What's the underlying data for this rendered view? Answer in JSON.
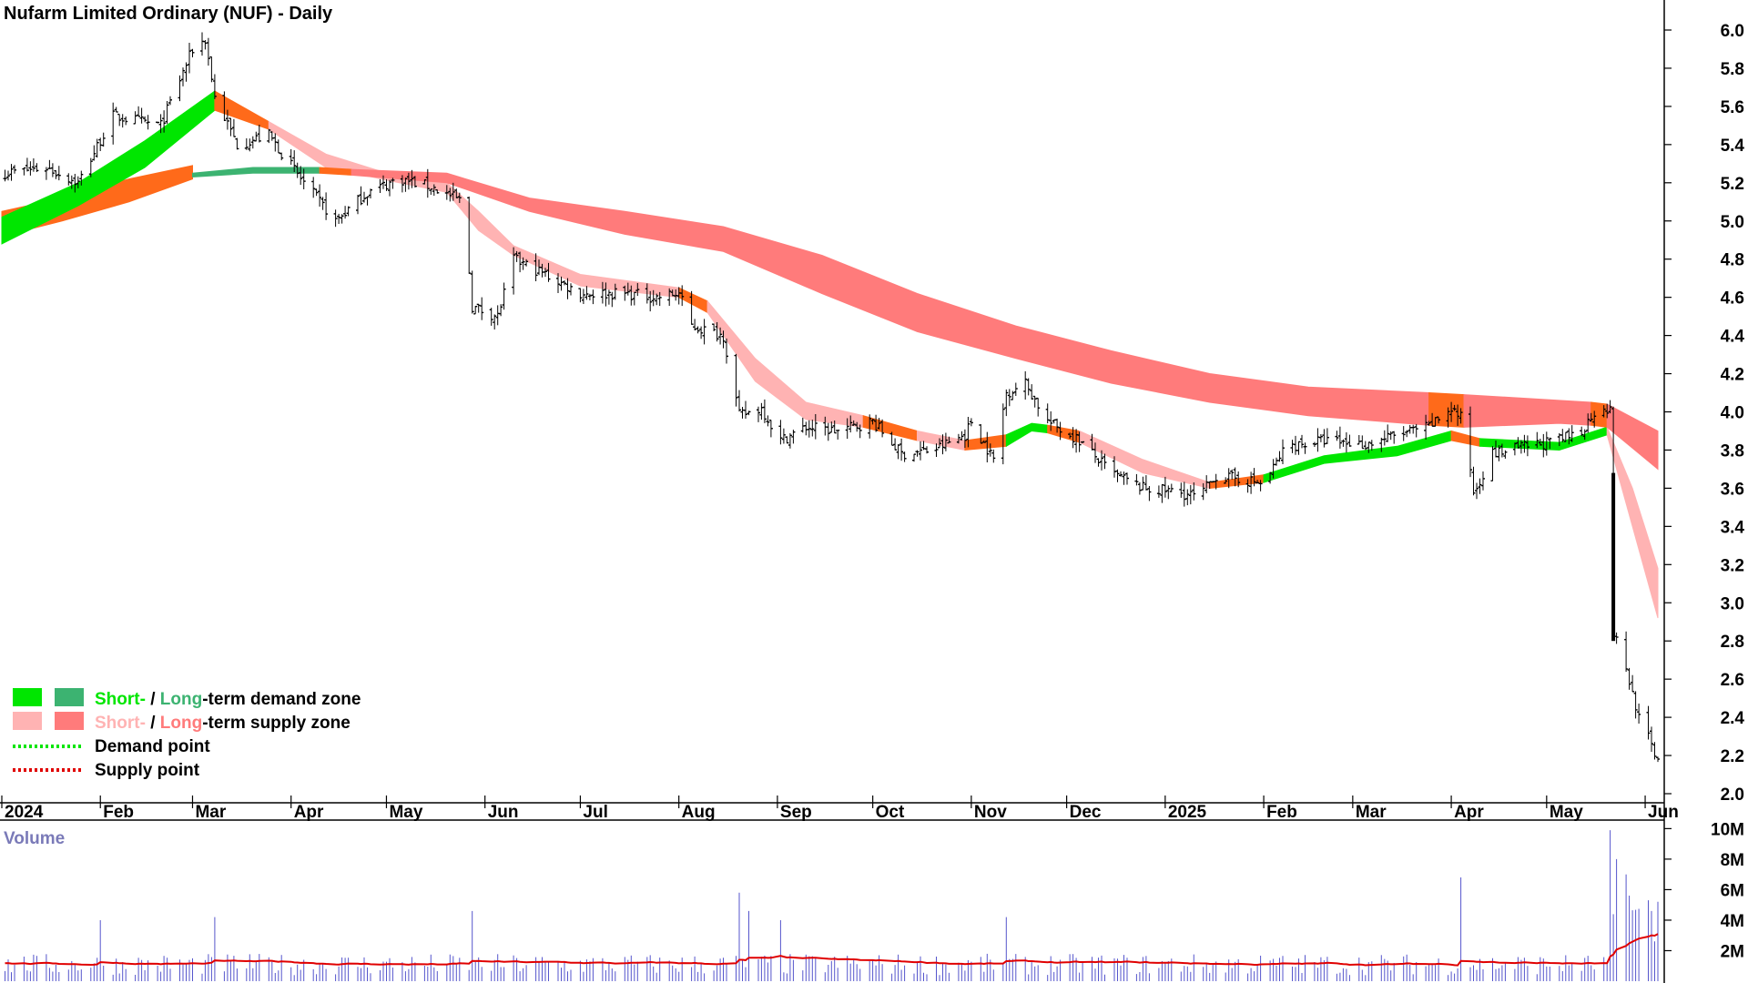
{
  "chart_data": {
    "type": "candlestick",
    "title": "Nufarm Limited Ordinary (NUF) - Daily",
    "price_axis": {
      "ylim": [
        2.0,
        6.1
      ],
      "ticks": [
        "6.0",
        "5.8",
        "5.6",
        "5.4",
        "5.2",
        "5.0",
        "4.8",
        "4.6",
        "4.4",
        "4.2",
        "4.0",
        "3.8",
        "3.6",
        "3.4",
        "3.2",
        "3.0",
        "2.8",
        "2.6",
        "2.4",
        "2.2",
        "2.0"
      ]
    },
    "x_axis": {
      "range": [
        "2024-01-01",
        "2025-06-07"
      ],
      "ticks": [
        {
          "date": "2024-01-01",
          "label": "2024"
        },
        {
          "date": "2024-02-01",
          "label": "Feb"
        },
        {
          "date": "2024-03-01",
          "label": "Mar"
        },
        {
          "date": "2024-04-01",
          "label": "Apr"
        },
        {
          "date": "2024-05-01",
          "label": "May"
        },
        {
          "date": "2024-06-01",
          "label": "Jun"
        },
        {
          "date": "2024-07-01",
          "label": "Jul"
        },
        {
          "date": "2024-08-01",
          "label": "Aug"
        },
        {
          "date": "2024-09-01",
          "label": "Sep"
        },
        {
          "date": "2024-10-01",
          "label": "Oct"
        },
        {
          "date": "2024-11-01",
          "label": "Nov"
        },
        {
          "date": "2024-12-01",
          "label": "Dec"
        },
        {
          "date": "2025-01-01",
          "label": "2025"
        },
        {
          "date": "2025-02-01",
          "label": "Feb"
        },
        {
          "date": "2025-03-01",
          "label": "Mar"
        },
        {
          "date": "2025-04-01",
          "label": "Apr"
        },
        {
          "date": "2025-05-01",
          "label": "May"
        },
        {
          "date": "2025-06-01",
          "label": "Jun"
        }
      ]
    },
    "price_path": [
      [
        "2024-01-01",
        5.25
      ],
      [
        "2024-01-15",
        5.28
      ],
      [
        "2024-01-25",
        5.2
      ],
      [
        "2024-02-05",
        5.55
      ],
      [
        "2024-02-20",
        5.5
      ],
      [
        "2024-03-01",
        5.9
      ],
      [
        "2024-03-05",
        5.95
      ],
      [
        "2024-03-08",
        5.65
      ],
      [
        "2024-03-15",
        5.4
      ],
      [
        "2024-03-25",
        5.45
      ],
      [
        "2024-04-05",
        5.2
      ],
      [
        "2024-04-15",
        5.0
      ],
      [
        "2024-04-25",
        5.15
      ],
      [
        "2024-05-05",
        5.22
      ],
      [
        "2024-05-15",
        5.18
      ],
      [
        "2024-05-25",
        5.1
      ],
      [
        "2024-05-28",
        4.55
      ],
      [
        "2024-06-05",
        4.5
      ],
      [
        "2024-06-10",
        4.8
      ],
      [
        "2024-06-20",
        4.72
      ],
      [
        "2024-07-01",
        4.62
      ],
      [
        "2024-07-15",
        4.62
      ],
      [
        "2024-07-25",
        4.6
      ],
      [
        "2024-08-01",
        4.62
      ],
      [
        "2024-08-05",
        4.45
      ],
      [
        "2024-08-15",
        4.4
      ],
      [
        "2024-08-20",
        3.98
      ],
      [
        "2024-08-27",
        4.02
      ],
      [
        "2024-09-02",
        3.85
      ],
      [
        "2024-09-10",
        3.92
      ],
      [
        "2024-09-20",
        3.9
      ],
      [
        "2024-10-01",
        3.95
      ],
      [
        "2024-10-10",
        3.78
      ],
      [
        "2024-10-20",
        3.8
      ],
      [
        "2024-10-30",
        3.88
      ],
      [
        "2024-11-01",
        3.95
      ],
      [
        "2024-11-08",
        3.75
      ],
      [
        "2024-11-12",
        4.1
      ],
      [
        "2024-11-18",
        4.15
      ],
      [
        "2024-11-25",
        3.95
      ],
      [
        "2024-12-05",
        3.85
      ],
      [
        "2024-12-15",
        3.68
      ],
      [
        "2024-12-25",
        3.6
      ],
      [
        "2025-01-05",
        3.58
      ],
      [
        "2025-01-12",
        3.55
      ],
      [
        "2025-01-16",
        3.66
      ],
      [
        "2025-01-25",
        3.65
      ],
      [
        "2025-02-01",
        3.62
      ],
      [
        "2025-02-08",
        3.82
      ],
      [
        "2025-02-20",
        3.85
      ],
      [
        "2025-03-05",
        3.83
      ],
      [
        "2025-03-15",
        3.88
      ],
      [
        "2025-03-25",
        3.92
      ],
      [
        "2025-04-01",
        4.02
      ],
      [
        "2025-04-05",
        3.95
      ],
      [
        "2025-04-08",
        3.58
      ],
      [
        "2025-04-14",
        3.78
      ],
      [
        "2025-04-25",
        3.82
      ],
      [
        "2025-05-05",
        3.85
      ],
      [
        "2025-05-12",
        3.9
      ],
      [
        "2025-05-18",
        4.05
      ],
      [
        "2025-05-21",
        4.0
      ],
      [
        "2025-05-22",
        2.85
      ],
      [
        "2025-05-26",
        2.65
      ],
      [
        "2025-05-30",
        2.4
      ],
      [
        "2025-06-05",
        2.18
      ]
    ],
    "zones": [
      {
        "name": "Short-term zone",
        "segments": [
          {
            "kind": "supply",
            "color": "#ff6a1a",
            "points": [
              [
                "2024-01-01",
                5.05,
                4.92
              ],
              [
                "2024-01-20",
                5.12,
                5.0
              ],
              [
                "2024-02-10",
                5.22,
                5.1
              ],
              [
                "2024-03-01",
                5.29,
                5.22
              ]
            ]
          },
          {
            "kind": "demand",
            "color": "#00e600",
            "points": [
              [
                "2024-01-01",
                5.02,
                4.88
              ],
              [
                "2024-01-25",
                5.2,
                5.08
              ],
              [
                "2024-02-15",
                5.42,
                5.28
              ],
              [
                "2024-03-08",
                5.68,
                5.58
              ]
            ]
          },
          {
            "kind": "supply",
            "color": "#ff6a1a",
            "points": [
              [
                "2024-03-08",
                5.68,
                5.58
              ],
              [
                "2024-03-25",
                5.52,
                5.48
              ]
            ]
          },
          {
            "kind": "supply",
            "color": "#ffb3b3",
            "points": [
              [
                "2024-03-25",
                5.52,
                5.48
              ],
              [
                "2024-04-12",
                5.35,
                5.28
              ],
              [
                "2024-05-05",
                5.23,
                5.2
              ],
              [
                "2024-05-20",
                5.2,
                5.15
              ],
              [
                "2024-05-30",
                5.05,
                4.95
              ],
              [
                "2024-06-10",
                4.87,
                4.82
              ],
              [
                "2024-07-01",
                4.72,
                4.66
              ],
              [
                "2024-08-01",
                4.65,
                4.6
              ]
            ]
          },
          {
            "kind": "supply",
            "color": "#ff6a1a",
            "points": [
              [
                "2024-08-01",
                4.65,
                4.6
              ],
              [
                "2024-08-10",
                4.58,
                4.52
              ]
            ]
          },
          {
            "kind": "supply",
            "color": "#ffb3b3",
            "points": [
              [
                "2024-08-10",
                4.58,
                4.52
              ],
              [
                "2024-08-25",
                4.28,
                4.16
              ],
              [
                "2024-09-10",
                4.05,
                3.96
              ],
              [
                "2024-09-28",
                3.98,
                3.92
              ]
            ]
          },
          {
            "kind": "supply",
            "color": "#ff6a1a",
            "points": [
              [
                "2024-09-28",
                3.98,
                3.92
              ],
              [
                "2024-10-15",
                3.9,
                3.85
              ]
            ]
          },
          {
            "kind": "supply",
            "color": "#ffb3b3",
            "points": [
              [
                "2024-10-15",
                3.9,
                3.85
              ],
              [
                "2024-10-30",
                3.85,
                3.8
              ]
            ]
          },
          {
            "kind": "supply",
            "color": "#ff6a1a",
            "points": [
              [
                "2024-10-30",
                3.85,
                3.8
              ],
              [
                "2024-11-12",
                3.88,
                3.82
              ]
            ]
          },
          {
            "kind": "demand",
            "color": "#00e600",
            "points": [
              [
                "2024-11-12",
                3.88,
                3.82
              ],
              [
                "2024-11-20",
                3.94,
                3.9
              ],
              [
                "2024-11-25",
                3.93,
                3.89
              ]
            ]
          },
          {
            "kind": "supply",
            "color": "#ff6a1a",
            "points": [
              [
                "2024-11-25",
                3.93,
                3.89
              ],
              [
                "2024-12-05",
                3.9,
                3.84
              ]
            ]
          },
          {
            "kind": "supply",
            "color": "#ffb3b3",
            "points": [
              [
                "2024-12-05",
                3.9,
                3.84
              ],
              [
                "2024-12-25",
                3.75,
                3.68
              ],
              [
                "2025-01-15",
                3.63,
                3.6
              ]
            ]
          },
          {
            "kind": "supply",
            "color": "#ff6a1a",
            "points": [
              [
                "2025-01-15",
                3.63,
                3.6
              ],
              [
                "2025-02-01",
                3.67,
                3.63
              ]
            ]
          },
          {
            "kind": "demand",
            "color": "#00e600",
            "points": [
              [
                "2025-02-01",
                3.67,
                3.63
              ],
              [
                "2025-02-20",
                3.77,
                3.73
              ],
              [
                "2025-03-15",
                3.82,
                3.77
              ],
              [
                "2025-04-01",
                3.9,
                3.85
              ]
            ]
          },
          {
            "kind": "supply",
            "color": "#ff6a1a",
            "points": [
              [
                "2025-04-01",
                3.9,
                3.85
              ],
              [
                "2025-04-10",
                3.86,
                3.82
              ]
            ]
          },
          {
            "kind": "demand",
            "color": "#00e600",
            "points": [
              [
                "2025-04-10",
                3.86,
                3.82
              ],
              [
                "2025-05-05",
                3.84,
                3.8
              ],
              [
                "2025-05-20",
                3.92,
                3.88
              ]
            ]
          },
          {
            "kind": "supply",
            "color": "#ffb3b3",
            "points": [
              [
                "2025-05-20",
                3.92,
                3.88
              ],
              [
                "2025-05-28",
                3.6,
                3.4
              ],
              [
                "2025-06-05",
                3.18,
                2.92
              ]
            ]
          }
        ]
      },
      {
        "name": "Long-term zone",
        "segments": [
          {
            "kind": "demand",
            "color": "#3cb371",
            "points": [
              [
                "2024-03-01",
                5.25,
                5.23
              ],
              [
                "2024-03-20",
                5.28,
                5.25
              ],
              [
                "2024-04-10",
                5.28,
                5.25
              ]
            ]
          },
          {
            "kind": "supply",
            "color": "#ff6a1a",
            "points": [
              [
                "2024-04-10",
                5.28,
                5.25
              ],
              [
                "2024-04-20",
                5.27,
                5.24
              ]
            ]
          },
          {
            "kind": "supply",
            "color": "#ff7b7b",
            "points": [
              [
                "2024-04-20",
                5.27,
                5.24
              ],
              [
                "2024-05-20",
                5.25,
                5.2
              ],
              [
                "2024-06-15",
                5.12,
                5.05
              ],
              [
                "2024-07-15",
                5.05,
                4.93
              ],
              [
                "2024-08-15",
                4.97,
                4.84
              ],
              [
                "2024-09-15",
                4.82,
                4.62
              ],
              [
                "2024-10-15",
                4.62,
                4.42
              ],
              [
                "2024-11-15",
                4.45,
                4.28
              ],
              [
                "2024-12-15",
                4.32,
                4.15
              ],
              [
                "2025-01-15",
                4.2,
                4.05
              ],
              [
                "2025-02-15",
                4.13,
                3.98
              ],
              [
                "2025-03-25",
                4.1,
                3.93
              ]
            ]
          },
          {
            "kind": "supply",
            "color": "#ff6a1a",
            "points": [
              [
                "2025-03-25",
                4.1,
                3.93
              ],
              [
                "2025-04-05",
                4.09,
                3.92
              ]
            ]
          },
          {
            "kind": "supply",
            "color": "#ff7b7b",
            "points": [
              [
                "2025-04-05",
                4.09,
                3.92
              ],
              [
                "2025-05-05",
                4.06,
                3.94
              ],
              [
                "2025-05-15",
                4.05,
                3.93
              ]
            ]
          },
          {
            "kind": "supply",
            "color": "#ff6a1a",
            "points": [
              [
                "2025-05-15",
                4.05,
                3.93
              ],
              [
                "2025-05-20",
                4.04,
                3.92
              ]
            ]
          },
          {
            "kind": "supply",
            "color": "#ff7b7b",
            "points": [
              [
                "2025-05-20",
                4.04,
                3.92
              ],
              [
                "2025-06-05",
                3.9,
                3.7
              ]
            ]
          }
        ]
      }
    ],
    "volume": {
      "title": "Volume",
      "ticks": [
        "10M",
        "8M",
        "6M",
        "4M",
        "2M"
      ],
      "ylim": [
        0,
        10500000
      ],
      "average_color": "#e00000",
      "bar_color": "#5555cc",
      "spikes": [
        [
          "2024-02-01",
          4000000
        ],
        [
          "2024-03-08",
          4200000
        ],
        [
          "2024-05-28",
          4600000
        ],
        [
          "2024-06-01",
          4200000
        ],
        [
          "2024-08-20",
          5800000
        ],
        [
          "2024-08-23",
          4600000
        ],
        [
          "2024-09-02",
          4000000
        ],
        [
          "2024-11-12",
          4200000
        ],
        [
          "2025-04-04",
          6800000
        ],
        [
          "2025-05-21",
          9900000
        ],
        [
          "2025-05-23",
          8000000
        ],
        [
          "2025-05-26",
          7000000
        ],
        [
          "2025-06-05",
          5200000
        ]
      ]
    },
    "legend": {
      "placement": "bottom-left",
      "items": [
        {
          "parts": [
            [
              "Short-",
              "#00e600"
            ],
            [
              " / ",
              "#000000"
            ],
            [
              "Long",
              "#3cb371"
            ],
            [
              "-term demand zone",
              "#000000"
            ]
          ],
          "swatches": [
            "#00e600",
            "#3cb371"
          ]
        },
        {
          "parts": [
            [
              "Short-",
              "#ffb3b3"
            ],
            [
              " / ",
              "#000000"
            ],
            [
              "Long",
              "#ff7b7b"
            ],
            [
              "-term supply zone",
              "#000000"
            ]
          ],
          "swatches": [
            "#ffb3b3",
            "#ff7b7b"
          ]
        },
        {
          "parts": [
            [
              "Demand point",
              "#000000"
            ]
          ],
          "dotted": "#00e600"
        },
        {
          "parts": [
            [
              "Supply point",
              "#000000"
            ]
          ],
          "dotted": "#e00000"
        }
      ]
    },
    "grid": false
  }
}
